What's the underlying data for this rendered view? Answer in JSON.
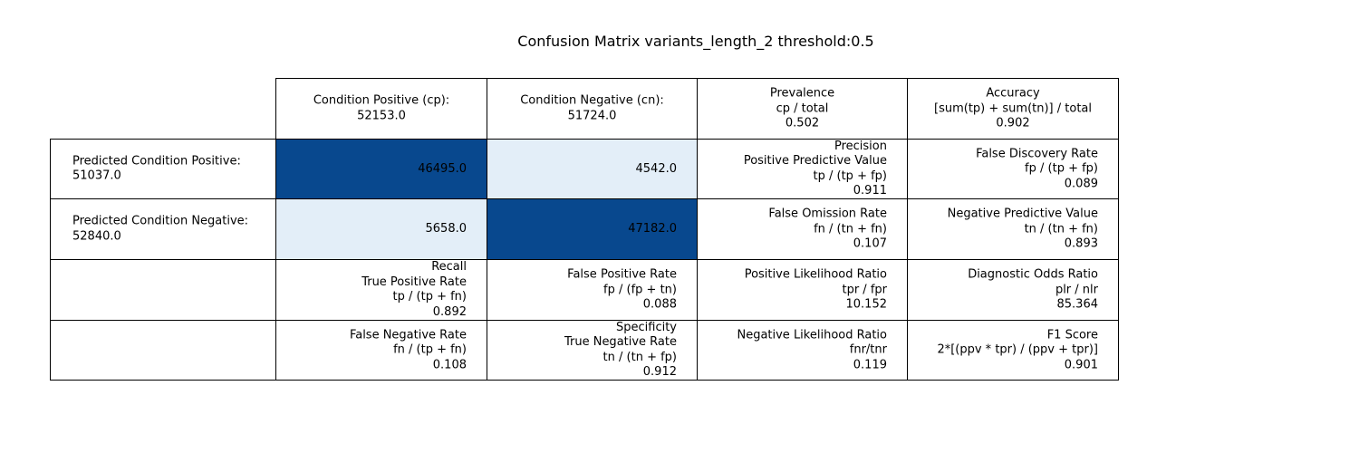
{
  "title": "Confusion Matrix variants_length_2 threshold:0.5",
  "colors": {
    "high": "#08488e",
    "low": "#e3eef8",
    "plain": "#ffffff",
    "border": "#000000"
  },
  "chart_data": {
    "type": "table",
    "title": "Confusion Matrix variants_length_2 threshold:0.5",
    "rows": [
      [
        "",
        "Condition Positive (cp):\n52153.0",
        "Condition Negative (cn):\n51724.0",
        "Prevalence\ncp / total\n0.502",
        "Accuracy\n[sum(tp) + sum(tn)] / total\n0.902"
      ],
      [
        "Predicted Condition Positive:\n51037.0",
        "46495.0",
        "4542.0",
        "Precision\nPositive Predictive Value\ntp / (tp + fp)\n0.911",
        "False Discovery Rate\nfp / (tp + fp)\n0.089"
      ],
      [
        "Predicted Condition Negative:\n52840.0",
        "5658.0",
        "47182.0",
        "False Omission Rate\nfn / (tn + fn)\n0.107",
        "Negative Predictive Value\ntn / (tn + fn)\n0.893"
      ],
      [
        "",
        "Recall\nTrue Positive Rate\ntp / (tp + fn)\n0.892",
        "False Positive Rate\nfp / (fp + tn)\n0.088",
        "Positive Likelihood Ratio\ntpr / fpr\n10.152",
        "Diagnostic Odds Ratio\nplr / nlr\n85.364"
      ],
      [
        "",
        "False Negative Rate\nfn / (tp + fn)\n0.108",
        "Specificity\nTrue Negative Rate\ntn / (tn + fp)\n0.912",
        "Negative Likelihood Ratio\nfnr/tnr\n0.119",
        "F1 Score\n2*[(ppv * tpr) / (ppv + tpr)]\n0.901"
      ]
    ],
    "confusion_matrix": {
      "tp": 46495.0,
      "fp": 4542.0,
      "fn": 5658.0,
      "tn": 47182.0
    },
    "cell_fill": [
      [
        "none",
        "none",
        "none",
        "none",
        "none"
      ],
      [
        "none",
        "high",
        "low",
        "none",
        "none"
      ],
      [
        "none",
        "low",
        "high",
        "none",
        "none"
      ],
      [
        "none",
        "none",
        "none",
        "none",
        "none"
      ],
      [
        "none",
        "none",
        "none",
        "none",
        "none"
      ]
    ]
  }
}
